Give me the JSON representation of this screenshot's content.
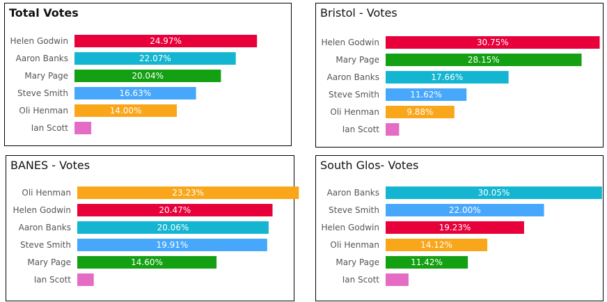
{
  "candidate_colors": {
    "Helen Godwin": "#e8003a",
    "Aaron Banks": "#13b5d1",
    "Mary Page": "#13a012",
    "Steve Smith": "#47a7fb",
    "Oli Henman": "#faa61a",
    "Ian Scott": "#e56cc4"
  },
  "chart_data": [
    {
      "type": "bar",
      "orientation": "horizontal",
      "title": "Total Votes",
      "categories": [
        "Helen Godwin",
        "Aaron Banks",
        "Mary Page",
        "Steve Smith",
        "Oli Henman",
        "Ian Scott"
      ],
      "values": [
        24.97,
        22.07,
        20.04,
        16.63,
        14.0,
        2.29
      ],
      "data_labels": [
        "24.97%",
        "22.07%",
        "20.04%",
        "16.63%",
        "14.00%",
        ""
      ],
      "xlim": [
        0,
        30
      ],
      "grid": false,
      "legend": "none"
    },
    {
      "type": "bar",
      "orientation": "horizontal",
      "title": "Bristol - Votes",
      "categories": [
        "Helen Godwin",
        "Mary Page",
        "Aaron Banks",
        "Steve Smith",
        "Oli Henman",
        "Ian Scott"
      ],
      "values": [
        30.75,
        28.15,
        17.66,
        11.62,
        9.88,
        1.94
      ],
      "data_labels": [
        "30.75%",
        "28.15%",
        "17.66%",
        "11.62%",
        "9.88%",
        ""
      ],
      "xlim": [
        0,
        36
      ],
      "grid": false,
      "legend": "none"
    },
    {
      "type": "bar",
      "orientation": "horizontal",
      "title": "BANES - Votes",
      "categories": [
        "Oli Henman",
        "Helen Godwin",
        "Aaron Banks",
        "Steve Smith",
        "Mary Page",
        "Ian Scott"
      ],
      "values": [
        23.23,
        20.47,
        20.06,
        19.91,
        14.6,
        1.73
      ],
      "data_labels": [
        "23.23%",
        "20.47%",
        "20.06%",
        "19.91%",
        "14.60%",
        ""
      ],
      "xlim": [
        0,
        27
      ],
      "grid": false,
      "legend": "none"
    },
    {
      "type": "bar",
      "orientation": "horizontal",
      "title": "South Glos- Votes",
      "categories": [
        "Aaron Banks",
        "Steve Smith",
        "Helen Godwin",
        "Oli Henman",
        "Mary Page",
        "Ian Scott"
      ],
      "values": [
        30.05,
        22.0,
        19.23,
        14.12,
        11.42,
        3.18
      ],
      "data_labels": [
        "30.05%",
        "22.00%",
        "19.23%",
        "14.12%",
        "11.42%",
        ""
      ],
      "xlim": [
        0,
        35
      ],
      "grid": false,
      "legend": "none"
    }
  ]
}
